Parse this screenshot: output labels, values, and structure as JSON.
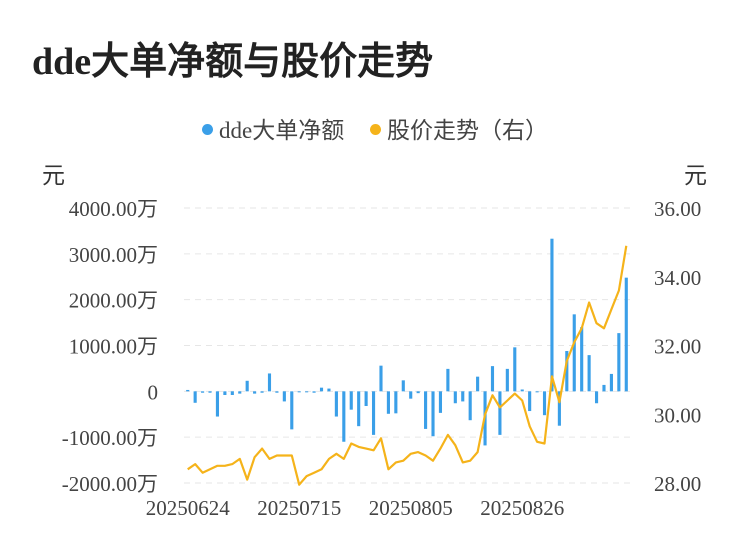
{
  "title": "dde大单净额与股价走势",
  "colors": {
    "bars": "#3a9fe8",
    "line": "#f5b31a",
    "grid": "#e6e6e6"
  },
  "chart_data": {
    "type": "bar+line",
    "legend": [
      {
        "name": "dde大单净额",
        "color": "#3a9fe8",
        "type": "bar"
      },
      {
        "name": "股价走势（右）",
        "color": "#f5b31a",
        "type": "line"
      }
    ],
    "left_unit": "元",
    "right_unit": "元",
    "left_axis": {
      "min": -2000,
      "max": 4000,
      "step": 1000,
      "tick_labels": [
        "4000.00万",
        "3000.00万",
        "2000.00万",
        "1000.00万",
        "0",
        "-1000.00万",
        "-2000.00万"
      ]
    },
    "right_axis": {
      "min": 28,
      "max": 36,
      "step": 2,
      "tick_labels": [
        "36.00",
        "34.00",
        "32.00",
        "30.00",
        "28.00"
      ]
    },
    "x_tick_labels": [
      {
        "label": "20250624",
        "index": 0
      },
      {
        "label": "20250715",
        "index": 15
      },
      {
        "label": "20250805",
        "index": 30
      },
      {
        "label": "20250826",
        "index": 45
      }
    ],
    "series": [
      {
        "name": "dde大单净额",
        "unit": "万元",
        "values": [
          30,
          -250,
          -30,
          -30,
          -550,
          -80,
          -80,
          -50,
          230,
          -50,
          -30,
          390,
          -30,
          -220,
          -830,
          -10,
          -10,
          -30,
          80,
          60,
          -550,
          -1100,
          -400,
          -760,
          -320,
          -950,
          560,
          -490,
          -480,
          240,
          -160,
          -40,
          -820,
          -980,
          -470,
          490,
          -260,
          -220,
          -630,
          320,
          -1180,
          550,
          -950,
          490,
          960,
          40,
          -430,
          -20,
          -520,
          3330,
          -750,
          880,
          1680,
          1400,
          790,
          -260,
          140,
          380,
          1270,
          2480
        ]
      },
      {
        "name": "股价走势（右）",
        "unit": "元",
        "values": [
          28.4,
          28.55,
          28.3,
          28.4,
          28.5,
          28.5,
          28.55,
          28.7,
          28.1,
          28.75,
          29.0,
          28.7,
          28.8,
          28.8,
          28.8,
          27.95,
          28.2,
          28.3,
          28.4,
          28.7,
          28.85,
          28.7,
          29.15,
          29.05,
          29.0,
          28.95,
          29.3,
          28.4,
          28.6,
          28.65,
          28.85,
          28.9,
          28.8,
          28.65,
          29.0,
          29.4,
          29.1,
          28.6,
          28.65,
          28.9,
          30.0,
          30.55,
          30.2,
          30.4,
          30.6,
          30.4,
          29.65,
          29.2,
          29.15,
          31.1,
          30.35,
          31.55,
          32.1,
          32.5,
          33.25,
          32.65,
          32.5,
          33.05,
          33.6,
          34.9
        ]
      }
    ]
  }
}
